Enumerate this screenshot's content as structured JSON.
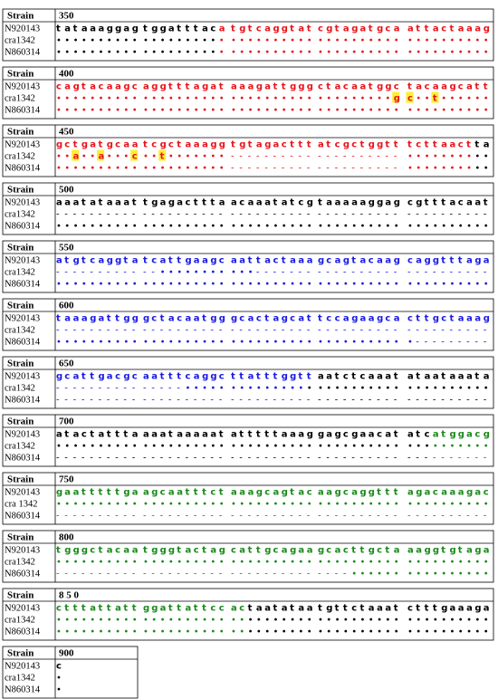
{
  "blocks": [
    {
      "header": [
        "Strain",
        "350"
      ],
      "rows": [
        {
          "name": "N920143",
          "seq": [
            "tataaaggag",
            "tggatttaca",
            "tgtcaggtat",
            "cgtagatgca",
            "attactaaag"
          ],
          "colors": [
            "kkkkkkkkkk",
            "kkkkkkkkkr",
            "rrrrrrrrrr",
            "rrrrrrrrrr",
            "rrrrrrrrrr"
          ]
        },
        {
          "name": "cra1342",
          "seq": [
            "••••••••••",
            "••••••••••",
            "••••••••••",
            "••••••••••",
            "••••••••••"
          ],
          "colors": [
            "kkkkkkkkkk",
            "kkkkkkkkkr",
            "rrrrrrrrrr",
            "rrrrrrrrrr",
            "rrrrrrrrrr"
          ]
        },
        {
          "name": "N860314",
          "seq": [
            "••••••••••",
            "••••••••••",
            "••••••••••",
            "••••••••••",
            "••••••••••"
          ],
          "colors": [
            "kkkkkkkkkk",
            "kkkkkkkkkr",
            "rrrrrrrrrr",
            "rrrrrrrrrr",
            "rrrrrrrrrr"
          ]
        }
      ]
    },
    {
      "header": [
        "Strain",
        "400"
      ],
      "rows": [
        {
          "name": "N920143",
          "seq": [
            "cagtacaagc",
            "aggtttagat",
            "aaagattggg",
            "ctacaatggc",
            "tacaagcatt"
          ],
          "colors": [
            "rrrrrrrrrr",
            "rrrrrrrrrr",
            "rrrrrrrrrr",
            "rrrrrrrrrr",
            "rrrrrrrrrr"
          ]
        },
        {
          "name": "cra1342",
          "seq": [
            "••••••••••",
            "••••••••••",
            "••••••••••",
            "•••••••••g",
            "c••t••••••"
          ],
          "colors": [
            "rrrrrrrrrr",
            "rrrrrrrrrr",
            "rrrrrrrrrr",
            "rrrrrrrrrR",
            "RrrRrrrrrr"
          ]
        },
        {
          "name": "N860314",
          "seq": [
            "••••••••••",
            "••••••••••",
            "••••••••••",
            "••••••••••",
            "••••••••••"
          ],
          "colors": [
            "rrrrrrrrrr",
            "rrrrrrrrrr",
            "rrrrrrrrrr",
            "rrrrrrrrrr",
            "rrrrrrrrrr"
          ]
        }
      ]
    },
    {
      "header": [
        "Strain",
        "450"
      ],
      "rows": [
        {
          "name": "N920143",
          "seq": [
            "gctgatgcaa",
            "tcgctaaagg",
            "tgtagacttt",
            "atcgctggtt",
            "tcttaactta"
          ],
          "colors": [
            "rrrrrrrrrr",
            "rrrrrrrrrr",
            "rrrrrrrrrr",
            "rrrrrrrrrr",
            "rrrrrrrrkk"
          ]
        },
        {
          "name": "cra1342",
          "seq": [
            "••a••a•••c",
            "••t•••••••",
            "----------",
            "----------",
            "••••••••••"
          ],
          "colors": [
            "rrRrrRrrrR",
            "rrRrrrrrrr",
            "rrrrrrrrrr",
            "rrrrrrrrrr",
            "rrrrrrrrkk"
          ]
        },
        {
          "name": "N860314",
          "seq": [
            "••••••••••",
            "••••••••••",
            "----------",
            "----------",
            "••••••••••"
          ],
          "colors": [
            "rrrrrrrrrr",
            "rrrrrrrrrr",
            "rrrrrrrrrr",
            "rrrrrrrrrr",
            "rrrrrrrrkk"
          ]
        }
      ]
    },
    {
      "header": [
        "Strain",
        "500"
      ],
      "rows": [
        {
          "name": "N920143",
          "seq": [
            "aaatataaat",
            "tgagacttta",
            "acaaatatcg",
            "taaaaaggag",
            "cgtttacaat"
          ],
          "colors": [
            "kkkkkkkkkk",
            "kkkkkkkkkk",
            "kkkkkkkkkk",
            "kkkkkkkkkk",
            "kkkkkkkkkk"
          ]
        },
        {
          "name": "cra1342",
          "seq": [
            "----------",
            "----------",
            "----------",
            "----------",
            "----------"
          ],
          "colors": [
            "kkkkkkkkkk",
            "kkkkkkkkkk",
            "kkkkkkkkkk",
            "kkkkkkkkkk",
            "kkkkkkkkkk"
          ]
        },
        {
          "name": "N860314",
          "seq": [
            "••••••••••",
            "••••••••••",
            "••••••••••",
            "••••••••••",
            "••••••••••"
          ],
          "colors": [
            "kkkkkkkkkk",
            "kkkkkkkkkk",
            "kkkkkkkkkk",
            "kkkkkkkkkk",
            "kkkkkkkkkk"
          ]
        }
      ]
    },
    {
      "header": [
        "Strain",
        "550"
      ],
      "rows": [
        {
          "name": "N920143",
          "seq": [
            "atgtcaggta",
            "tcattgaagc",
            "aattactaaa",
            "gcagtacaag",
            "caggtttaga"
          ],
          "colors": [
            "bbbbbbbbbb",
            "bbbbbbbbbb",
            "bbbbbbbbbb",
            "bbbbbbbbbb",
            "bbbbbbbbbb"
          ]
        },
        {
          "name": "cra1342",
          "seq": [
            "----------",
            "--••••••••",
            "•••-------",
            "----------",
            "----------"
          ],
          "colors": [
            "bbbbbbbbbb",
            "bbbbbbbbbb",
            "bbbbbbbbbb",
            "bbbbbbbbbb",
            "bbbbbbbbbb"
          ]
        },
        {
          "name": "N860314",
          "seq": [
            "••••••••••",
            "••••••••••",
            "••••••••••",
            "••••••••••",
            "••••••••••"
          ],
          "colors": [
            "bbbbbbbbbb",
            "bbbbbbbbbb",
            "bbbbbbbbbb",
            "bbbbbbbbbb",
            "bbbbbbbbbb"
          ]
        }
      ]
    },
    {
      "header": [
        "Strain",
        "600"
      ],
      "rows": [
        {
          "name": "N920143",
          "seq": [
            "taaagattgg",
            "gctacaatgg",
            "gcactagcat",
            "tccagaagca",
            "cttgctaaag"
          ],
          "colors": [
            "bbbbbbbbbb",
            "bbbbbbbbbb",
            "bbbbbbbbbb",
            "bbbbbbbbbb",
            "bbbbbbbbbb"
          ]
        },
        {
          "name": "cra1342",
          "seq": [
            "----------",
            "----------",
            "----------",
            "----------",
            "----------"
          ],
          "colors": [
            "bbbbbbbbbb",
            "bbbbbbbbbb",
            "bbbbbbbbbb",
            "bbbbbbbbbb",
            "bbbbbbbbbb"
          ]
        },
        {
          "name": "N860314",
          "seq": [
            "••••••••••",
            "••••••••••",
            "••••••••••",
            "••••••••••",
            "•---------"
          ],
          "colors": [
            "bbbbbbbbbb",
            "bbbbbbbbbb",
            "bbbbbbbbbb",
            "bbbbbbbbbb",
            "bbbbbbbbbb"
          ]
        }
      ]
    },
    {
      "header": [
        "Strain",
        "650"
      ],
      "rows": [
        {
          "name": "N920143",
          "seq": [
            "gcattgacgc",
            "aatttcaggc",
            "ttatttggtt",
            "aatctcaaat",
            "ataataaata"
          ],
          "colors": [
            "bbbbbbbbbb",
            "bbbbbbbbbb",
            "bbbbbbbbbb",
            "kkkkkkkkkk",
            "kkkkkkkkkk"
          ]
        },
        {
          "name": "cra1342",
          "seq": [
            "----------",
            "-----•••••",
            "••••••••••",
            "••••••••••",
            "••••••••••"
          ],
          "colors": [
            "bbbbbbbbbb",
            "bbbbbbbbbb",
            "bbbbbbbbbk",
            "kkkkkkkkkk",
            "kkkkkkkkkk"
          ]
        },
        {
          "name": "N860314",
          "seq": [
            "----------",
            "----------",
            "----------",
            "----------",
            "----------"
          ],
          "colors": [
            "bbbbbbbbbb",
            "bbbbbbbbbb",
            "bbbbbbbbbb",
            "kkkkkkkkkk",
            "kkkkkkkkkk"
          ]
        }
      ]
    },
    {
      "header": [
        "Strain",
        "700"
      ],
      "rows": [
        {
          "name": "N920143",
          "seq": [
            "atactattta",
            "aaataaaaat",
            "atttttaaag",
            "gagcgaacat",
            "atcatggacg"
          ],
          "colors": [
            "kkkkkkkkkk",
            "kkkkkkkkkk",
            "kkkkkkkkkk",
            "kkkkkkkkkk",
            "kkkggggggg"
          ]
        },
        {
          "name": "cra1342",
          "seq": [
            "••••••••••",
            "••••••••••",
            "••••••••••",
            "••••••••••",
            "••••••••••"
          ],
          "colors": [
            "kkkkkkkkkk",
            "kkkkkkkkkk",
            "kkkkkkkkkk",
            "kkkkkkkkkk",
            "kkkggggggg"
          ]
        },
        {
          "name": "N860314",
          "seq": [
            "----------",
            "----------",
            "----------",
            "----------",
            "----------"
          ],
          "colors": [
            "kkkkkkkkkk",
            "kkkkkkkkkk",
            "kkkkkkkkkk",
            "kkkkkkkkkk",
            "kkkggggggg"
          ]
        }
      ]
    },
    {
      "header": [
        "Strain",
        "750"
      ],
      "rows": [
        {
          "name": "N920143",
          "seq": [
            "gaatttttga",
            "agcaatttct",
            "aaagcagtac",
            "aagcaggttt",
            "agacaaagac"
          ],
          "colors": [
            "gggggggggg",
            "gggggggggg",
            "gggggggggg",
            "gggggggggg",
            "gggggggggg"
          ]
        },
        {
          "name": "cra 1342",
          "seq": [
            "••••••••••",
            "••••••••••",
            "••••••••••",
            "••••••••••",
            "••••••••••"
          ],
          "colors": [
            "gggggggggg",
            "gggggggggg",
            "gggggggggg",
            "gggggggggg",
            "gggggggggg"
          ]
        },
        {
          "name": "N860314",
          "seq": [
            "----------",
            "----------",
            "----------",
            "----------",
            "----------"
          ],
          "colors": [
            "gggggggggg",
            "gggggggggg",
            "gggggggggg",
            "gggggggggg",
            "gggggggggg"
          ]
        }
      ]
    },
    {
      "header": [
        "Strain",
        "800"
      ],
      "rows": [
        {
          "name": "N920143",
          "seq": [
            "tgggctacaa",
            "tgggtactag",
            "cattgcagaa",
            "gcacttgcta",
            "aaggtgtaga"
          ],
          "colors": [
            "gggggggggg",
            "gggggggggg",
            "gggggggggg",
            "gggggggggg",
            "gggggggggg"
          ]
        },
        {
          "name": "cra1342",
          "seq": [
            "••••••••••",
            "••••••••••",
            "••••••••••",
            "••••••••••",
            "••••••••••"
          ],
          "colors": [
            "gggggggggg",
            "gggggggggg",
            "gggggggggg",
            "gggggggggg",
            "gggggggggg"
          ]
        },
        {
          "name": "N860314",
          "seq": [
            "----------",
            "----------",
            "----------",
            "----••••••",
            "••••••••••"
          ],
          "colors": [
            "gggggggggg",
            "gggggggggg",
            "gggggggggg",
            "gggggggggg",
            "gggggggggg"
          ]
        }
      ]
    },
    {
      "header": [
        "Strain",
        "8 5 0"
      ],
      "rows": [
        {
          "name": "N920143",
          "seq": [
            "ctttattatt",
            "ggattattcc",
            "actaatataa",
            "tgttctaaat",
            "ctttgaaaga"
          ],
          "colors": [
            "gggggggggg",
            "gggggggggg",
            "ggkkkkkkkk",
            "kkkkkkkkkk",
            "kkkkkkkkkk"
          ]
        },
        {
          "name": "cra1342",
          "seq": [
            "••••••••••",
            "••••••••••",
            "••••••••••",
            "••••••••••",
            "••••••••••"
          ],
          "colors": [
            "gggggggggg",
            "gggggggggg",
            "ggkkkkkkkk",
            "kkkkkkkkkk",
            "kkkkkkkkkk"
          ]
        },
        {
          "name": "N860314",
          "seq": [
            "••••••••••",
            "••••••••••",
            "••••••••••",
            "••••••••••",
            "••••••••••"
          ],
          "colors": [
            "gggggggggg",
            "gggggggggg",
            "ggkkkkkkkk",
            "kkkkkkkkkk",
            "kkkkkkkkkk"
          ]
        }
      ]
    },
    {
      "header": [
        "Strain",
        "900"
      ],
      "rows": [
        {
          "name": "N920143",
          "seq": [
            "c"
          ],
          "colors": [
            "k"
          ]
        },
        {
          "name": "cra1342",
          "seq": [
            "•"
          ],
          "colors": [
            "k"
          ]
        },
        {
          "name": "N860314",
          "seq": [
            "•"
          ],
          "colors": [
            "k"
          ]
        }
      ]
    }
  ]
}
